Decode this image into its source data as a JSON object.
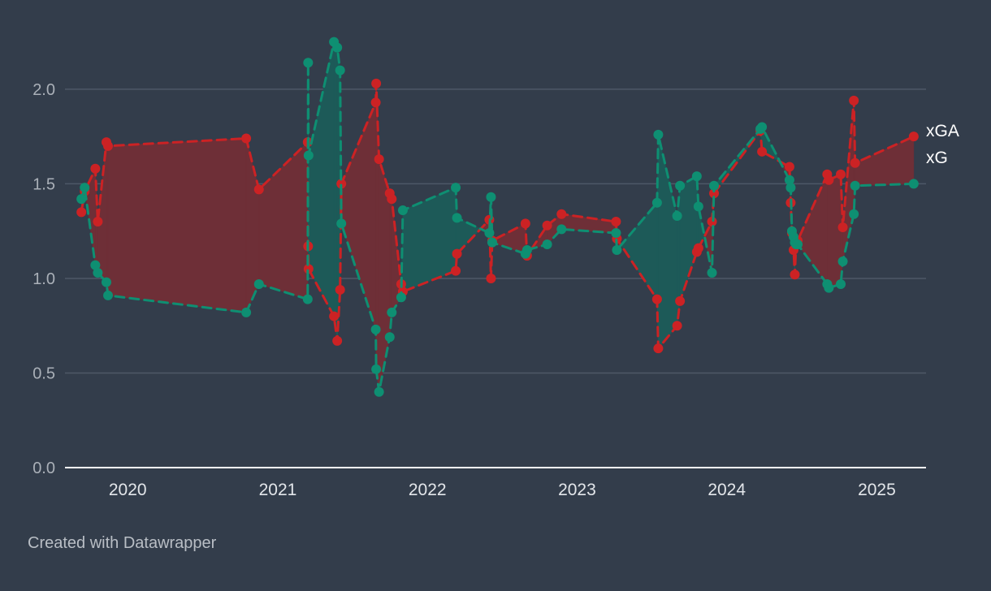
{
  "colors": {
    "background": "#333d4b",
    "grid": "#4e5867",
    "baseline": "#ffffff",
    "fill_xga_above": "#6e2f37",
    "fill_xg_above": "#1d5a58"
  },
  "footer": {
    "credit": "Created with Datawrapper"
  },
  "chart_data": {
    "type": "line",
    "title": "",
    "xlabel": "",
    "ylabel": "",
    "ylim": [
      0,
      2.3
    ],
    "yticks": [
      0.0,
      0.5,
      1.0,
      1.5,
      2.0
    ],
    "ytick_labels": [
      "0.0",
      "0.5",
      "1.0",
      "1.5",
      "2.0"
    ],
    "xlim": [
      "2019-08-01",
      "2025-05-01"
    ],
    "xticks": [
      "2020-01-01",
      "2021-01-01",
      "2022-01-01",
      "2023-01-01",
      "2024-01-01",
      "2025-01-01"
    ],
    "xtick_labels": [
      "2020",
      "2021",
      "2022",
      "2023",
      "2024",
      "2025"
    ],
    "grid": true,
    "legend": "right-end labels",
    "area_between_series": true,
    "line_style": "dashed with markers",
    "x": [
      "2019-09-10",
      "2019-09-18",
      "2019-10-14",
      "2019-10-20",
      "2019-11-10",
      "2019-11-14",
      "2020-10-16",
      "2020-11-16",
      "2021-03-15",
      "2021-03-16",
      "2021-03-17",
      "2021-05-18",
      "2021-05-26",
      "2021-06-02",
      "2021-06-05",
      "2021-08-28",
      "2021-08-29",
      "2021-09-05",
      "2021-10-01",
      "2021-10-06",
      "2021-10-29",
      "2021-11-02",
      "2022-03-11",
      "2022-03-14",
      "2022-06-01",
      "2022-06-05",
      "2022-06-08",
      "2022-08-28",
      "2022-09-01",
      "2022-10-20",
      "2022-11-24",
      "2023-04-06",
      "2023-04-08",
      "2023-07-15",
      "2023-07-18",
      "2023-09-02",
      "2023-09-09",
      "2023-10-20",
      "2023-10-24",
      "2023-11-26",
      "2023-12-01",
      "2024-03-23",
      "2024-03-27",
      "2024-06-02",
      "2024-06-05",
      "2024-06-08",
      "2024-06-12",
      "2024-06-15",
      "2024-06-18",
      "2024-06-22",
      "2024-09-02",
      "2024-09-06",
      "2024-10-05",
      "2024-10-10",
      "2024-11-06",
      "2024-11-09",
      "2025-04-01"
    ],
    "series": [
      {
        "name": "xGA",
        "color": "#cc2224",
        "values": [
          1.35,
          1.46,
          1.58,
          1.3,
          1.72,
          1.7,
          1.74,
          1.47,
          1.72,
          1.17,
          1.05,
          0.8,
          0.67,
          0.94,
          1.5,
          1.93,
          2.03,
          1.63,
          1.45,
          1.42,
          0.97,
          0.93,
          1.04,
          1.13,
          1.31,
          1.0,
          1.2,
          1.29,
          1.12,
          1.28,
          1.34,
          1.3,
          1.21,
          0.89,
          0.63,
          0.75,
          0.88,
          1.14,
          1.16,
          1.3,
          1.45,
          1.78,
          1.67,
          1.59,
          1.4,
          1.24,
          1.15,
          1.02,
          1.18,
          1.2,
          1.55,
          1.52,
          1.55,
          1.27,
          1.94,
          1.61,
          1.75
        ]
      },
      {
        "name": "xG",
        "color": "#0e8f72",
        "values": [
          1.42,
          1.48,
          1.07,
          1.03,
          0.98,
          0.91,
          0.82,
          0.97,
          0.89,
          2.14,
          1.65,
          2.25,
          2.22,
          2.1,
          1.29,
          0.73,
          0.52,
          0.4,
          0.69,
          0.82,
          0.9,
          1.36,
          1.48,
          1.32,
          1.24,
          1.43,
          1.19,
          1.13,
          1.15,
          1.18,
          1.26,
          1.24,
          1.15,
          1.4,
          1.76,
          1.33,
          1.49,
          1.54,
          1.38,
          1.03,
          1.49,
          1.79,
          1.8,
          1.52,
          1.48,
          1.25,
          1.22,
          1.19,
          1.18,
          1.18,
          0.97,
          0.95,
          0.97,
          1.09,
          1.34,
          1.49,
          1.5
        ]
      }
    ]
  }
}
